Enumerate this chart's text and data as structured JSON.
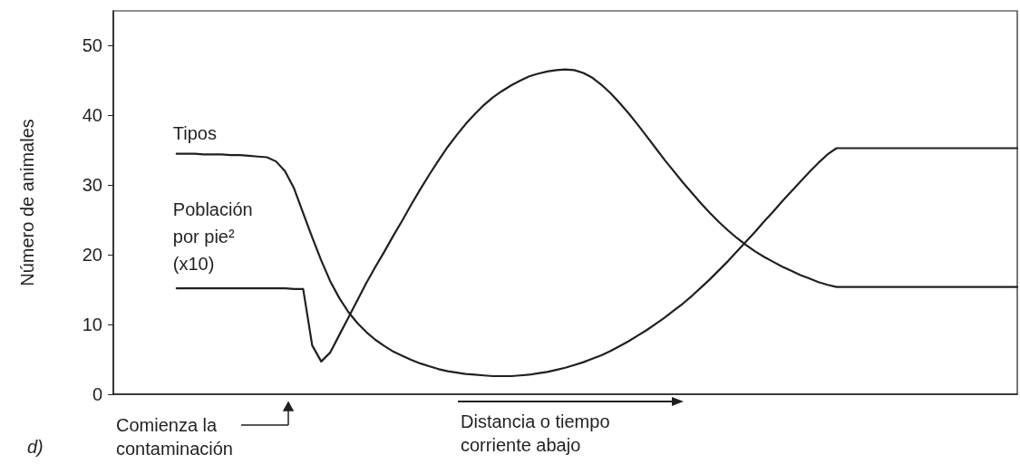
{
  "chart_data": {
    "type": "line",
    "ylabel": "Número de animales",
    "categories": [
      null,
      null,
      null,
      null,
      null,
      null,
      null,
      null,
      null,
      null,
      null,
      null,
      null,
      null,
      null,
      null,
      null,
      null,
      null,
      null,
      null,
      null,
      null,
      null,
      null,
      null,
      null,
      null,
      null,
      null,
      null,
      null,
      null,
      null,
      null,
      null,
      null,
      null,
      null,
      null,
      null,
      null,
      null,
      null,
      null,
      null,
      null,
      null,
      null,
      null,
      null,
      null,
      null,
      null,
      null,
      null,
      null,
      null,
      null,
      null,
      null,
      null,
      null,
      null,
      null,
      null,
      null,
      null,
      null,
      null,
      null,
      null,
      null,
      null,
      null,
      null,
      null,
      null,
      null,
      null,
      null,
      null,
      null,
      null,
      null,
      null,
      null,
      null,
      null,
      null,
      null,
      null,
      null,
      null,
      null,
      null,
      null,
      null,
      null,
      null,
      null
    ],
    "series": [
      {
        "name": "Tipos",
        "color": "#231f20",
        "values": [
          null,
          null,
          null,
          null,
          null,
          null,
          null,
          34.5,
          34.5,
          34.5,
          34.4,
          34.4,
          34.4,
          34.3,
          34.3,
          34.2,
          34.1,
          34,
          33.4,
          32,
          29.5,
          26,
          22.5,
          19.2,
          16.2,
          13.8,
          11.8,
          10.2,
          8.9,
          7.8,
          6.9,
          6.1,
          5.5,
          4.9,
          4.4,
          4,
          3.6,
          3.3,
          3.1,
          2.9,
          2.8,
          2.7,
          2.6,
          2.6,
          2.6,
          2.7,
          2.8,
          3,
          3.2,
          3.5,
          3.8,
          4.2,
          4.6,
          5.1,
          5.6,
          6.2,
          6.9,
          7.6,
          8.4,
          9.2,
          10.1,
          11,
          12,
          13,
          14.1,
          15.3,
          16.5,
          17.8,
          19.1,
          20.5,
          21.9,
          23.3,
          24.8,
          26.2,
          27.7,
          29.1,
          30.5,
          31.9,
          33.2,
          34.4,
          35.3,
          35.3,
          35.3,
          35.3,
          35.3,
          35.3,
          35.3,
          35.3,
          35.3,
          35.3,
          35.3,
          35.3,
          35.3,
          35.3,
          35.3,
          35.3,
          35.3,
          35.3,
          35.3,
          35.3,
          35.3
        ]
      },
      {
        "name": "Población por pie² (x10)",
        "color": "#231f20",
        "values": [
          null,
          null,
          null,
          null,
          null,
          null,
          null,
          15.2,
          15.2,
          15.2,
          15.2,
          15.2,
          15.2,
          15.2,
          15.2,
          15.2,
          15.2,
          15.2,
          15.2,
          15.2,
          15.1,
          15.1,
          7,
          4.7,
          6,
          8.5,
          11,
          13.5,
          16,
          18.3,
          20.5,
          22.8,
          25,
          27.3,
          29.5,
          31.6,
          33.6,
          35.5,
          37.2,
          38.8,
          40.2,
          41.5,
          42.6,
          43.5,
          44.3,
          45,
          45.6,
          46,
          46.3,
          46.5,
          46.6,
          46.5,
          46.1,
          45.4,
          44.4,
          43.2,
          41.8,
          40.3,
          38.7,
          37,
          35.3,
          33.6,
          32,
          30.4,
          28.9,
          27.4,
          26,
          24.7,
          23.5,
          22.4,
          21.4,
          20.5,
          19.7,
          19,
          18.3,
          17.7,
          17.1,
          16.6,
          16.1,
          15.7,
          15.4,
          15.4,
          15.4,
          15.4,
          15.4,
          15.4,
          15.4,
          15.4,
          15.4,
          15.4,
          15.4,
          15.4,
          15.4,
          15.4,
          15.4,
          15.4,
          15.4,
          15.4,
          15.4,
          15.4,
          15.4
        ]
      }
    ],
    "ylim": [
      0,
      55
    ],
    "yticks": [
      0,
      10,
      20,
      30,
      40,
      50
    ],
    "annotations": [
      "Comienza la contaminación",
      "Distancia o tiempo corriente abajo",
      "d)"
    ],
    "grid": false,
    "legend": false,
    "marker": "none",
    "line_style": "solid"
  }
}
